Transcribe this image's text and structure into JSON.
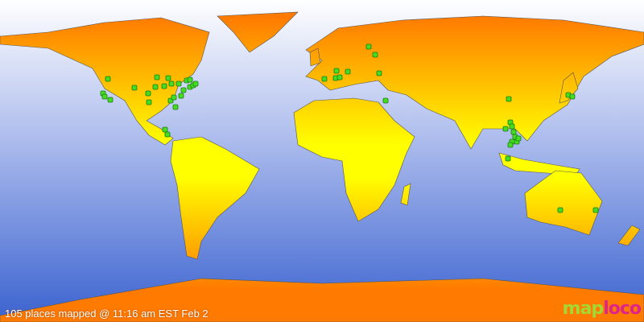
{
  "caption": "105 places mapped @ 11:16 am EST Feb 2",
  "logo": {
    "part1": "map",
    "part2": "loco"
  },
  "colors": {
    "ocean_top": "#ffffff",
    "ocean_bottom": "#3a66d0",
    "land_top": "#ff7a00",
    "land_bottom": "#ffff00",
    "marker": "#44dd22",
    "marker_border": "#1b7a10"
  }
}
